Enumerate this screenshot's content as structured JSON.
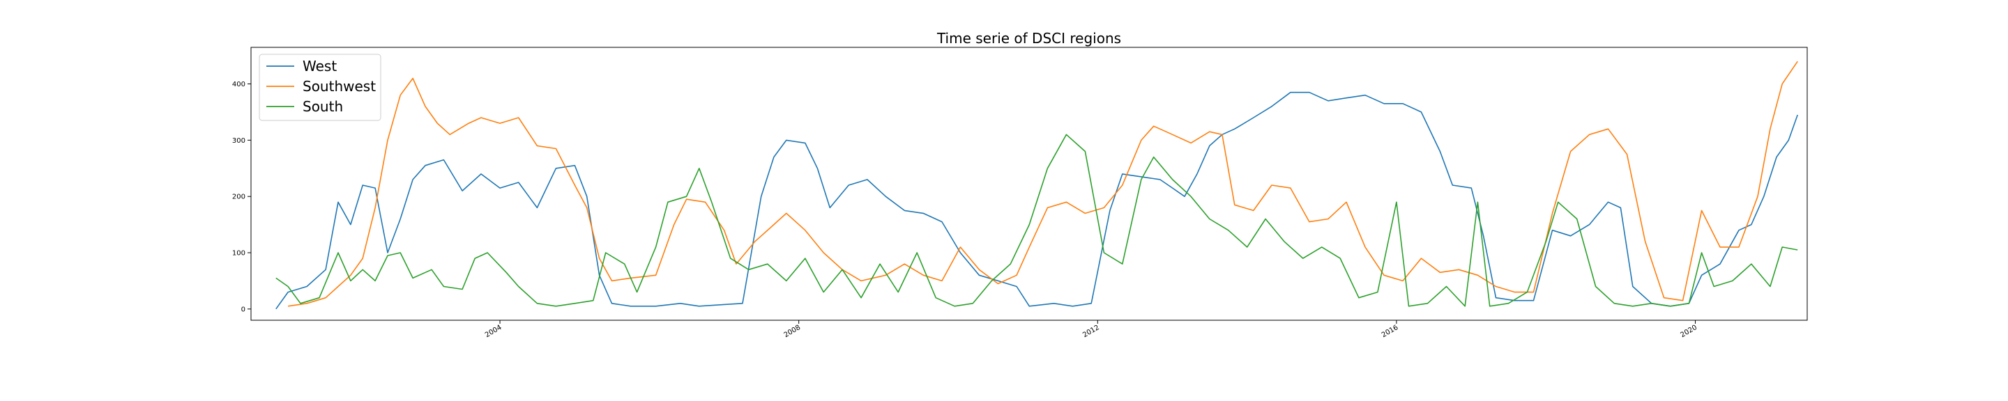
{
  "chart_data": {
    "type": "line",
    "title": "Time serie of DSCI regions",
    "xlabel": "",
    "ylabel": "",
    "x_range": [
      "2000-09-01",
      "2021-07-01"
    ],
    "ylim": [
      -20,
      465
    ],
    "y_ticks": [
      0,
      100,
      200,
      300,
      400
    ],
    "y_tick_labels": [
      "0",
      "100",
      "200",
      "300",
      "400"
    ],
    "x_ticks": [
      "2004-01-01",
      "2008-01-01",
      "2012-01-01",
      "2016-01-01",
      "2020-01-01"
    ],
    "x_tick_labels": [
      "2004",
      "2008",
      "2012",
      "2016",
      "2020"
    ],
    "grid": false,
    "legend_position": "upper-left",
    "series": [
      {
        "name": "West",
        "color": "#1f77b4",
        "points": [
          [
            "2001-01-01",
            0
          ],
          [
            "2001-03-01",
            30
          ],
          [
            "2001-06-01",
            40
          ],
          [
            "2001-09-01",
            70
          ],
          [
            "2001-11-01",
            190
          ],
          [
            "2002-01-01",
            150
          ],
          [
            "2002-03-01",
            220
          ],
          [
            "2002-05-01",
            215
          ],
          [
            "2002-07-01",
            100
          ],
          [
            "2002-09-01",
            160
          ],
          [
            "2002-11-01",
            230
          ],
          [
            "2003-01-01",
            255
          ],
          [
            "2003-04-01",
            265
          ],
          [
            "2003-07-01",
            210
          ],
          [
            "2003-10-01",
            240
          ],
          [
            "2004-01-01",
            215
          ],
          [
            "2004-04-01",
            225
          ],
          [
            "2004-07-01",
            180
          ],
          [
            "2004-10-01",
            250
          ],
          [
            "2005-01-01",
            255
          ],
          [
            "2005-03-01",
            200
          ],
          [
            "2005-05-01",
            60
          ],
          [
            "2005-07-01",
            10
          ],
          [
            "2005-10-01",
            5
          ],
          [
            "2006-02-01",
            5
          ],
          [
            "2006-06-01",
            10
          ],
          [
            "2006-09-01",
            5
          ],
          [
            "2007-01-01",
            8
          ],
          [
            "2007-04-01",
            10
          ],
          [
            "2007-07-01",
            200
          ],
          [
            "2007-09-01",
            270
          ],
          [
            "2007-11-01",
            300
          ],
          [
            "2008-02-01",
            295
          ],
          [
            "2008-04-01",
            250
          ],
          [
            "2008-06-01",
            180
          ],
          [
            "2008-09-01",
            220
          ],
          [
            "2008-12-01",
            230
          ],
          [
            "2009-03-01",
            200
          ],
          [
            "2009-06-01",
            175
          ],
          [
            "2009-09-01",
            170
          ],
          [
            "2009-12-01",
            155
          ],
          [
            "2010-03-01",
            100
          ],
          [
            "2010-06-01",
            60
          ],
          [
            "2010-09-01",
            50
          ],
          [
            "2010-12-01",
            40
          ],
          [
            "2011-02-01",
            5
          ],
          [
            "2011-06-01",
            10
          ],
          [
            "2011-09-01",
            5
          ],
          [
            "2011-12-01",
            10
          ],
          [
            "2012-03-01",
            175
          ],
          [
            "2012-05-01",
            240
          ],
          [
            "2012-08-01",
            235
          ],
          [
            "2012-11-01",
            230
          ],
          [
            "2013-01-01",
            215
          ],
          [
            "2013-03-01",
            200
          ],
          [
            "2013-05-01",
            240
          ],
          [
            "2013-07-01",
            290
          ],
          [
            "2013-09-01",
            310
          ],
          [
            "2013-11-01",
            320
          ],
          [
            "2014-02-01",
            340
          ],
          [
            "2014-05-01",
            360
          ],
          [
            "2014-08-01",
            385
          ],
          [
            "2014-11-01",
            385
          ],
          [
            "2015-02-01",
            370
          ],
          [
            "2015-05-01",
            375
          ],
          [
            "2015-08-01",
            380
          ],
          [
            "2015-11-01",
            365
          ],
          [
            "2016-02-01",
            365
          ],
          [
            "2016-05-01",
            350
          ],
          [
            "2016-08-01",
            280
          ],
          [
            "2016-10-01",
            220
          ],
          [
            "2017-01-01",
            215
          ],
          [
            "2017-03-01",
            130
          ],
          [
            "2017-05-01",
            20
          ],
          [
            "2017-08-01",
            15
          ],
          [
            "2017-11-01",
            15
          ],
          [
            "2018-02-01",
            140
          ],
          [
            "2018-05-01",
            130
          ],
          [
            "2018-08-01",
            150
          ],
          [
            "2018-11-01",
            190
          ],
          [
            "2019-01-01",
            180
          ],
          [
            "2019-03-01",
            40
          ],
          [
            "2019-06-01",
            10
          ],
          [
            "2019-09-01",
            5
          ],
          [
            "2019-12-01",
            10
          ],
          [
            "2020-02-01",
            60
          ],
          [
            "2020-05-01",
            80
          ],
          [
            "2020-08-01",
            140
          ],
          [
            "2020-10-01",
            150
          ],
          [
            "2020-12-01",
            200
          ],
          [
            "2021-02-01",
            270
          ],
          [
            "2021-04-01",
            300
          ],
          [
            "2021-05-15",
            345
          ]
        ]
      },
      {
        "name": "Southwest",
        "color": "#ff7f0e",
        "points": [
          [
            "2001-03-01",
            5
          ],
          [
            "2001-06-01",
            10
          ],
          [
            "2001-09-01",
            20
          ],
          [
            "2001-11-01",
            40
          ],
          [
            "2002-01-01",
            60
          ],
          [
            "2002-03-01",
            90
          ],
          [
            "2002-05-01",
            180
          ],
          [
            "2002-07-01",
            300
          ],
          [
            "2002-09-01",
            380
          ],
          [
            "2002-11-01",
            410
          ],
          [
            "2003-01-01",
            360
          ],
          [
            "2003-03-01",
            330
          ],
          [
            "2003-05-01",
            310
          ],
          [
            "2003-08-01",
            330
          ],
          [
            "2003-10-01",
            340
          ],
          [
            "2004-01-01",
            330
          ],
          [
            "2004-04-01",
            340
          ],
          [
            "2004-07-01",
            290
          ],
          [
            "2004-10-01",
            285
          ],
          [
            "2005-01-01",
            220
          ],
          [
            "2005-03-01",
            180
          ],
          [
            "2005-05-01",
            90
          ],
          [
            "2005-07-01",
            50
          ],
          [
            "2005-10-01",
            55
          ],
          [
            "2006-02-01",
            60
          ],
          [
            "2006-05-01",
            150
          ],
          [
            "2006-07-01",
            195
          ],
          [
            "2006-10-01",
            190
          ],
          [
            "2007-01-01",
            140
          ],
          [
            "2007-03-01",
            80
          ],
          [
            "2007-06-01",
            120
          ],
          [
            "2007-09-01",
            150
          ],
          [
            "2007-11-01",
            170
          ],
          [
            "2008-02-01",
            140
          ],
          [
            "2008-05-01",
            100
          ],
          [
            "2008-08-01",
            70
          ],
          [
            "2008-11-01",
            50
          ],
          [
            "2009-03-01",
            60
          ],
          [
            "2009-06-01",
            80
          ],
          [
            "2009-09-01",
            60
          ],
          [
            "2009-12-01",
            50
          ],
          [
            "2010-03-01",
            110
          ],
          [
            "2010-06-01",
            70
          ],
          [
            "2010-09-01",
            45
          ],
          [
            "2010-12-01",
            60
          ],
          [
            "2011-02-01",
            110
          ],
          [
            "2011-05-01",
            180
          ],
          [
            "2011-08-01",
            190
          ],
          [
            "2011-11-01",
            170
          ],
          [
            "2012-02-01",
            180
          ],
          [
            "2012-05-01",
            220
          ],
          [
            "2012-08-01",
            300
          ],
          [
            "2012-10-01",
            325
          ],
          [
            "2013-01-01",
            310
          ],
          [
            "2013-04-01",
            295
          ],
          [
            "2013-07-01",
            315
          ],
          [
            "2013-09-01",
            310
          ],
          [
            "2013-11-01",
            185
          ],
          [
            "2014-02-01",
            175
          ],
          [
            "2014-05-01",
            220
          ],
          [
            "2014-08-01",
            215
          ],
          [
            "2014-11-01",
            155
          ],
          [
            "2015-02-01",
            160
          ],
          [
            "2015-05-01",
            190
          ],
          [
            "2015-08-01",
            110
          ],
          [
            "2015-11-01",
            60
          ],
          [
            "2016-02-01",
            50
          ],
          [
            "2016-05-01",
            90
          ],
          [
            "2016-08-01",
            65
          ],
          [
            "2016-11-01",
            70
          ],
          [
            "2017-02-01",
            60
          ],
          [
            "2017-05-01",
            40
          ],
          [
            "2017-08-01",
            30
          ],
          [
            "2017-11-01",
            30
          ],
          [
            "2018-02-01",
            170
          ],
          [
            "2018-05-01",
            280
          ],
          [
            "2018-08-01",
            310
          ],
          [
            "2018-11-01",
            320
          ],
          [
            "2019-02-01",
            275
          ],
          [
            "2019-05-01",
            120
          ],
          [
            "2019-08-01",
            20
          ],
          [
            "2019-11-01",
            15
          ],
          [
            "2020-02-01",
            175
          ],
          [
            "2020-05-01",
            110
          ],
          [
            "2020-08-01",
            110
          ],
          [
            "2020-11-01",
            200
          ],
          [
            "2021-01-01",
            320
          ],
          [
            "2021-03-01",
            400
          ],
          [
            "2021-05-15",
            440
          ]
        ]
      },
      {
        "name": "South",
        "color": "#2ca02c",
        "points": [
          [
            "2001-01-01",
            55
          ],
          [
            "2001-03-01",
            40
          ],
          [
            "2001-05-01",
            10
          ],
          [
            "2001-08-01",
            20
          ],
          [
            "2001-11-01",
            100
          ],
          [
            "2002-01-01",
            50
          ],
          [
            "2002-03-01",
            70
          ],
          [
            "2002-05-01",
            50
          ],
          [
            "2002-07-01",
            95
          ],
          [
            "2002-09-01",
            100
          ],
          [
            "2002-11-01",
            55
          ],
          [
            "2003-02-01",
            70
          ],
          [
            "2003-04-01",
            40
          ],
          [
            "2003-07-01",
            35
          ],
          [
            "2003-09-01",
            90
          ],
          [
            "2003-11-01",
            100
          ],
          [
            "2004-02-01",
            65
          ],
          [
            "2004-04-01",
            40
          ],
          [
            "2004-07-01",
            10
          ],
          [
            "2004-10-01",
            5
          ],
          [
            "2005-01-01",
            10
          ],
          [
            "2005-04-01",
            15
          ],
          [
            "2005-06-01",
            100
          ],
          [
            "2005-09-01",
            80
          ],
          [
            "2005-11-01",
            30
          ],
          [
            "2006-02-01",
            110
          ],
          [
            "2006-04-01",
            190
          ],
          [
            "2006-07-01",
            200
          ],
          [
            "2006-09-01",
            250
          ],
          [
            "2006-11-01",
            190
          ],
          [
            "2007-02-01",
            90
          ],
          [
            "2007-05-01",
            70
          ],
          [
            "2007-08-01",
            80
          ],
          [
            "2007-11-01",
            50
          ],
          [
            "2008-02-01",
            90
          ],
          [
            "2008-05-01",
            30
          ],
          [
            "2008-08-01",
            70
          ],
          [
            "2008-11-01",
            20
          ],
          [
            "2009-02-01",
            80
          ],
          [
            "2009-05-01",
            30
          ],
          [
            "2009-08-01",
            100
          ],
          [
            "2009-11-01",
            20
          ],
          [
            "2010-02-01",
            5
          ],
          [
            "2010-05-01",
            10
          ],
          [
            "2010-08-01",
            50
          ],
          [
            "2010-11-01",
            80
          ],
          [
            "2011-02-01",
            150
          ],
          [
            "2011-05-01",
            250
          ],
          [
            "2011-08-01",
            310
          ],
          [
            "2011-11-01",
            280
          ],
          [
            "2012-02-01",
            100
          ],
          [
            "2012-05-01",
            80
          ],
          [
            "2012-08-01",
            230
          ],
          [
            "2012-10-01",
            270
          ],
          [
            "2013-01-01",
            230
          ],
          [
            "2013-04-01",
            200
          ],
          [
            "2013-07-01",
            160
          ],
          [
            "2013-10-01",
            140
          ],
          [
            "2014-01-01",
            110
          ],
          [
            "2014-04-01",
            160
          ],
          [
            "2014-07-01",
            120
          ],
          [
            "2014-10-01",
            90
          ],
          [
            "2015-01-01",
            110
          ],
          [
            "2015-04-01",
            90
          ],
          [
            "2015-07-01",
            20
          ],
          [
            "2015-10-01",
            30
          ],
          [
            "2016-01-01",
            190
          ],
          [
            "2016-03-01",
            5
          ],
          [
            "2016-06-01",
            10
          ],
          [
            "2016-09-01",
            40
          ],
          [
            "2016-12-01",
            5
          ],
          [
            "2017-02-01",
            190
          ],
          [
            "2017-04-01",
            5
          ],
          [
            "2017-07-01",
            10
          ],
          [
            "2017-10-01",
            30
          ],
          [
            "2018-01-01",
            120
          ],
          [
            "2018-03-01",
            190
          ],
          [
            "2018-06-01",
            160
          ],
          [
            "2018-09-01",
            40
          ],
          [
            "2018-12-01",
            10
          ],
          [
            "2019-03-01",
            5
          ],
          [
            "2019-06-01",
            10
          ],
          [
            "2019-09-01",
            5
          ],
          [
            "2019-12-01",
            10
          ],
          [
            "2020-02-01",
            100
          ],
          [
            "2020-04-01",
            40
          ],
          [
            "2020-07-01",
            50
          ],
          [
            "2020-10-01",
            80
          ],
          [
            "2021-01-01",
            40
          ],
          [
            "2021-03-01",
            110
          ],
          [
            "2021-05-15",
            105
          ]
        ]
      }
    ]
  }
}
